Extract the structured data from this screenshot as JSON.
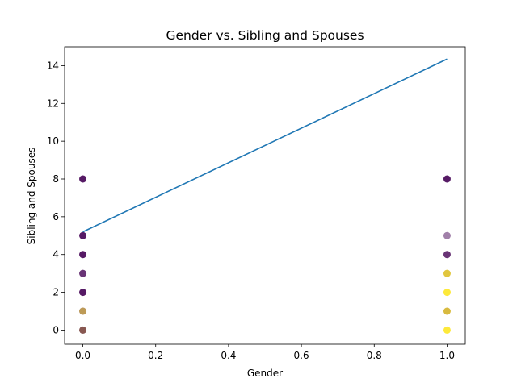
{
  "chart_data": {
    "type": "scatter",
    "title": "Gender vs. Sibling and Spouses",
    "xlabel": "Gender",
    "ylabel": "Sibling and Spouses",
    "xlim": [
      -0.05,
      1.05
    ],
    "ylim": [
      -0.75,
      15.0
    ],
    "x_ticks": [
      0.0,
      0.2,
      0.4,
      0.6,
      0.8,
      1.0
    ],
    "x_tick_labels": [
      "0.0",
      "0.2",
      "0.4",
      "0.6",
      "0.8",
      "1.0"
    ],
    "y_ticks": [
      0,
      2,
      4,
      6,
      8,
      10,
      12,
      14
    ],
    "y_tick_labels": [
      "0",
      "2",
      "4",
      "6",
      "8",
      "10",
      "12",
      "14"
    ],
    "grid": false,
    "legend": "none",
    "points": [
      {
        "x": 0,
        "y": 8,
        "color": "#440154",
        "opacity": 0.9
      },
      {
        "x": 0,
        "y": 5,
        "color": "#440154",
        "opacity": 0.9
      },
      {
        "x": 0,
        "y": 4,
        "color": "#440154",
        "opacity": 0.9
      },
      {
        "x": 0,
        "y": 3,
        "color": "#440154",
        "opacity": 0.8
      },
      {
        "x": 0,
        "y": 2,
        "color": "#440154",
        "opacity": 0.9
      },
      {
        "x": 0,
        "y": 1,
        "color": "#440154",
        "opacity": 0.7
      },
      {
        "x": 0,
        "y": 1,
        "color": "#fde725",
        "opacity": 0.5
      },
      {
        "x": 0,
        "y": 0,
        "color": "#440154",
        "opacity": 0.9
      },
      {
        "x": 0,
        "y": 0,
        "color": "#fde725",
        "opacity": 0.3
      },
      {
        "x": 1,
        "y": 8,
        "color": "#440154",
        "opacity": 0.9
      },
      {
        "x": 1,
        "y": 5,
        "color": "#440154",
        "opacity": 0.5
      },
      {
        "x": 1,
        "y": 4,
        "color": "#440154",
        "opacity": 0.8
      },
      {
        "x": 1,
        "y": 3,
        "color": "#fde725",
        "opacity": 0.9
      },
      {
        "x": 1,
        "y": 3,
        "color": "#440154",
        "opacity": 0.15
      },
      {
        "x": 1,
        "y": 2,
        "color": "#fde725",
        "opacity": 0.9
      },
      {
        "x": 1,
        "y": 1,
        "color": "#fde725",
        "opacity": 0.9
      },
      {
        "x": 1,
        "y": 1,
        "color": "#440154",
        "opacity": 0.2
      },
      {
        "x": 1,
        "y": 0,
        "color": "#fde725",
        "opacity": 0.9
      }
    ],
    "regression_line": {
      "x": [
        0,
        1
      ],
      "y": [
        5.2,
        14.35
      ],
      "color": "#1f77b4"
    }
  }
}
